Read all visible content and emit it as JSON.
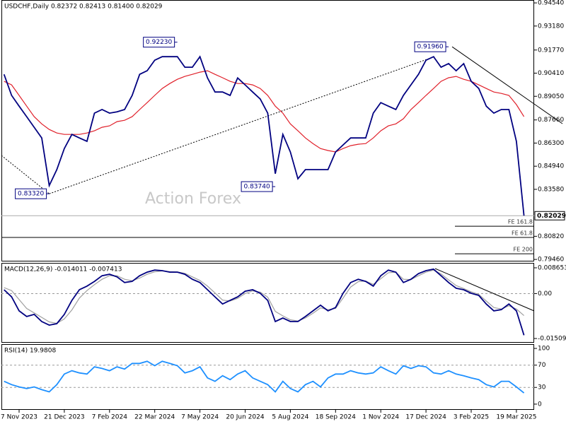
{
  "chart_data": [
    {
      "type": "line",
      "title": "USDCHF,Daily  0.82372 0.82413 0.81400 0.82029",
      "watermark": "Action Forex",
      "categories": [
        null,
        null,
        "7 Nov 2023",
        null,
        null,
        null,
        null,
        null,
        "21 Dec 2023",
        null,
        null,
        null,
        null,
        null,
        "7 Feb 2024",
        null,
        null,
        null,
        null,
        null,
        "22 Mar 2024",
        null,
        null,
        null,
        null,
        null,
        "7 May 2024",
        null,
        null,
        null,
        null,
        null,
        "20 Jun 2024",
        null,
        null,
        null,
        null,
        null,
        "5 Aug 2024",
        null,
        null,
        null,
        null,
        null,
        "18 Sep 2024",
        null,
        null,
        null,
        null,
        null,
        "1 Nov 2024",
        null,
        null,
        null,
        null,
        null,
        "17 Dec 2024",
        null,
        null,
        null,
        null,
        null,
        "3 Feb 2025",
        null,
        null,
        null,
        null,
        null,
        "19 Mar 2025",
        null
      ],
      "series": [
        {
          "color": "#000080",
          "values": [
            0.9034,
            0.891,
            0.8847,
            0.8785,
            0.8723,
            0.866,
            0.838,
            0.8474,
            0.8598,
            0.8681,
            0.866,
            0.864,
            0.8806,
            0.8827,
            0.8806,
            0.8814,
            0.8827,
            0.891,
            0.9034,
            0.9055,
            0.9117,
            0.9138,
            0.9138,
            0.9138,
            0.9076,
            0.9076,
            0.9138,
            0.9013,
            0.893,
            0.893,
            0.891,
            0.9013,
            0.8972,
            0.893,
            0.8889,
            0.8806,
            0.845,
            0.8681,
            0.8578,
            0.842,
            0.8474,
            0.8474,
            0.8474,
            0.8474,
            0.8578,
            0.8619,
            0.866,
            0.866,
            0.866,
            0.8806,
            0.8868,
            0.8847,
            0.8827,
            0.891,
            0.8972,
            0.9034,
            0.9117,
            0.9138,
            0.9076,
            0.9097,
            0.9055,
            0.9097,
            0.8993,
            0.8951,
            0.8847,
            0.8806,
            0.8827,
            0.8827,
            0.864,
            0.8203
          ]
        },
        {
          "color": "#e0202a",
          "values": [
            0.8993,
            0.8972,
            0.891,
            0.8847,
            0.8785,
            0.8743,
            0.871,
            0.8689,
            0.8681,
            0.8681,
            0.8681,
            0.8689,
            0.8702,
            0.8723,
            0.8731,
            0.8756,
            0.8764,
            0.8785,
            0.8827,
            0.8868,
            0.891,
            0.8951,
            0.898,
            0.9005,
            0.9022,
            0.9034,
            0.9047,
            0.9055,
            0.9034,
            0.9014,
            0.8993,
            0.898,
            0.898,
            0.8972,
            0.8951,
            0.891,
            0.8847,
            0.8806,
            0.8743,
            0.8702,
            0.866,
            0.8627,
            0.8598,
            0.8586,
            0.8578,
            0.8598,
            0.8615,
            0.8623,
            0.8627,
            0.866,
            0.8702,
            0.8731,
            0.8743,
            0.8773,
            0.8827,
            0.8868,
            0.891,
            0.8951,
            0.8993,
            0.9014,
            0.9022,
            0.9005,
            0.8993,
            0.8972,
            0.8951,
            0.893,
            0.8922,
            0.891,
            0.8856,
            0.8785
          ]
        }
      ],
      "annotations": [
        {
          "label": "0.83320",
          "value": 0.8332,
          "index": 6
        },
        {
          "label": "0.92230",
          "value": 0.9223,
          "index": 23
        },
        {
          "label": "0.83740",
          "value": 0.8374,
          "index": 36
        },
        {
          "label": "0.91960",
          "value": 0.9196,
          "index": 59
        }
      ],
      "levels": [
        {
          "label": "FE 161.8",
          "value": 0.8141
        },
        {
          "label": "FE 61.8",
          "value": 0.8075
        },
        {
          "label": "FE 200",
          "value": 0.7979
        }
      ],
      "last_price": {
        "label": "0.82029",
        "value": 0.82029
      },
      "ylim": [
        0.7934,
        0.9471
      ],
      "yticks": [
        {
          "value": 0.9454,
          "label": "0.94540"
        },
        {
          "value": 0.9318,
          "label": "0.93180"
        },
        {
          "value": 0.9177,
          "label": "0.91770"
        },
        {
          "value": 0.9041,
          "label": "0.90410"
        },
        {
          "value": 0.8905,
          "label": "0.89050"
        },
        {
          "value": 0.8766,
          "label": "0.87660"
        },
        {
          "value": 0.863,
          "label": "0.86300"
        },
        {
          "value": 0.8494,
          "label": "0.84940"
        },
        {
          "value": 0.8358,
          "label": "0.83580"
        },
        {
          "value": 0.8082,
          "label": "0.80820"
        },
        {
          "value": 0.7946,
          "label": "0.79460"
        }
      ]
    },
    {
      "type": "line",
      "title": "MACD(12,26,9) -0.014011 -0.007413",
      "series": [
        {
          "color": "#000080",
          "values": [
            0.0013,
            -0.0011,
            -0.0058,
            -0.0077,
            -0.007,
            -0.0094,
            -0.0106,
            -0.0101,
            -0.007,
            -0.0023,
            0.0013,
            0.0025,
            0.0041,
            0.006,
            0.0065,
            0.0056,
            0.0037,
            0.0041,
            0.006,
            0.0072,
            0.0079,
            0.0077,
            0.0072,
            0.0072,
            0.0065,
            0.0048,
            0.0037,
            0.0013,
            -0.0011,
            -0.0035,
            -0.0023,
            -0.0011,
            0.0008,
            0.0013,
            0.0001,
            -0.0023,
            -0.0094,
            -0.0082,
            -0.0094,
            -0.0094,
            -0.0077,
            -0.0058,
            -0.0039,
            -0.0058,
            -0.0047,
            0.0001,
            0.0037,
            0.0048,
            0.0041,
            0.0025,
            0.006,
            0.0079,
            0.0072,
            0.0037,
            0.0048,
            0.0067,
            0.0077,
            0.0082,
            0.006,
            0.0037,
            0.0018,
            0.0013,
            0.0001,
            -0.0006,
            -0.0035,
            -0.0058,
            -0.0054,
            -0.0035,
            -0.0058,
            -0.014
          ]
        },
        {
          "color": "#a0a0a0",
          "values": [
            0.002,
            0.001,
            -0.002,
            -0.005,
            -0.0065,
            -0.008,
            -0.0095,
            -0.01,
            -0.0085,
            -0.0055,
            -0.0015,
            0.001,
            0.003,
            0.0048,
            0.006,
            0.006,
            0.0048,
            0.0043,
            0.0052,
            0.0065,
            0.0073,
            0.0076,
            0.0074,
            0.0073,
            0.0068,
            0.0056,
            0.0044,
            0.0025,
            0.0002,
            -0.0022,
            -0.0025,
            -0.0016,
            0.0,
            0.0009,
            0.0005,
            -0.0012,
            -0.006,
            -0.0075,
            -0.0088,
            -0.0092,
            -0.0082,
            -0.0066,
            -0.0048,
            -0.0054,
            -0.005,
            -0.0015,
            0.0022,
            0.004,
            0.0042,
            0.0031,
            0.005,
            0.007,
            0.0072,
            0.0048,
            0.0047,
            0.006,
            0.0072,
            0.0079,
            0.0066,
            0.0046,
            0.0027,
            0.0017,
            0.0006,
            -0.0003,
            -0.0025,
            -0.0047,
            -0.0052,
            -0.0041,
            -0.0052,
            -0.0074
          ]
        }
      ],
      "ylim": [
        -0.01651,
        0.01031
      ],
      "yticks": [
        0.008653,
        {
          "value": 0,
          "label": "0.00"
        },
        -0.01509
      ],
      "grid": "inner"
    },
    {
      "type": "line",
      "title": "RSI(14) 19.9808",
      "series": [
        {
          "color": "#1e90ff",
          "values": [
            41,
            35,
            31,
            28,
            31,
            26,
            22,
            35,
            54,
            60,
            56,
            54,
            67,
            64,
            60,
            67,
            63,
            73,
            73,
            77,
            69,
            77,
            73,
            69,
            56,
            60,
            67,
            47,
            41,
            51,
            44,
            54,
            60,
            47,
            41,
            35,
            22,
            41,
            28,
            22,
            35,
            41,
            31,
            47,
            54,
            54,
            60,
            56,
            54,
            56,
            67,
            60,
            54,
            69,
            64,
            69,
            67,
            56,
            54,
            60,
            54,
            51,
            47,
            44,
            35,
            31,
            41,
            41,
            31,
            19.98
          ]
        }
      ],
      "ylim": [
        -10.3,
        107.7
      ],
      "yticks": [
        100,
        70,
        30,
        0
      ],
      "grid": "inner"
    }
  ]
}
